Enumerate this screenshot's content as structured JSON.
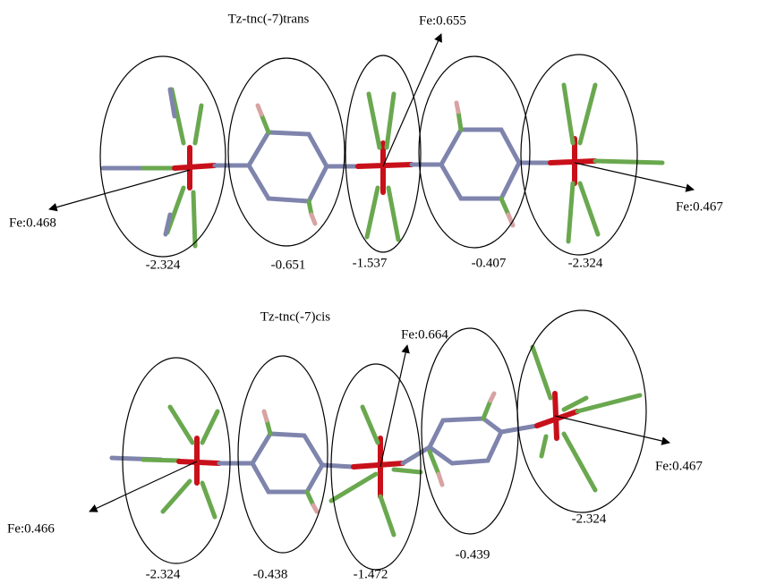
{
  "panels": [
    {
      "title": "Tz-tnc(-7)trans",
      "fe_labels": [
        "Fe:0.468",
        "Fe:0.655",
        "Fe:0.467"
      ],
      "charges": [
        "-2.324",
        "-0.651",
        "-1.537",
        "-0.407",
        "-2.324"
      ]
    },
    {
      "title": "Tz-tnc(-7)cis",
      "fe_labels": [
        "Fe:0.466",
        "Fe:0.664",
        "Fe:0.467"
      ],
      "charges": [
        "-2.324",
        "-0.438",
        "-1.472",
        "-0.439",
        "-2.324"
      ]
    }
  ]
}
